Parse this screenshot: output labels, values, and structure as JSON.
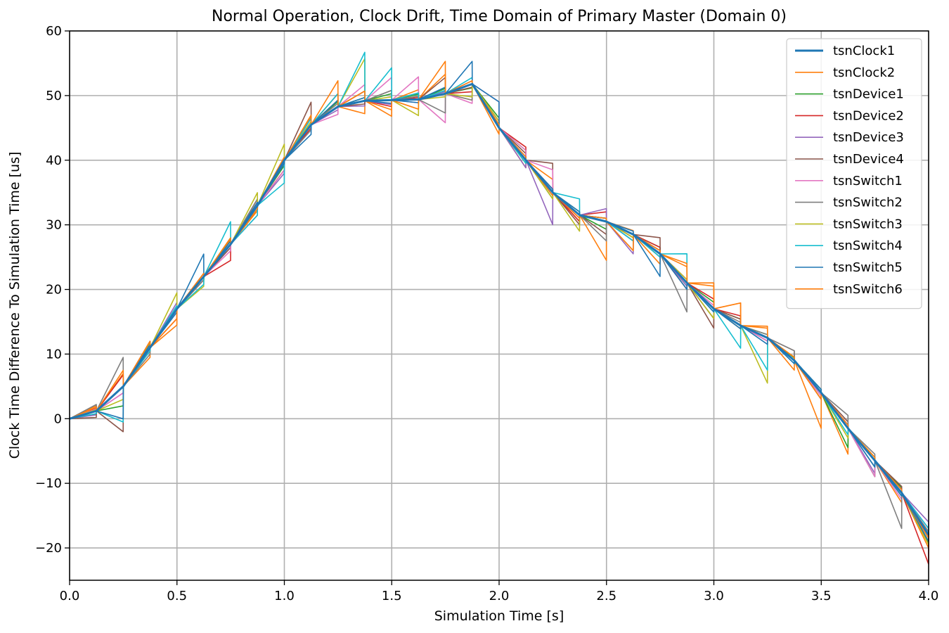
{
  "chart_data": {
    "type": "line",
    "title": "Normal Operation, Clock Drift, Time Domain of Primary Master (Domain 0)",
    "xlabel": "Simulation Time [s]",
    "ylabel": "Clock Time Difference To Simulation Time [us]",
    "xlim": [
      0.0,
      4.0
    ],
    "ylim": [
      -25,
      60
    ],
    "xticks": [
      0.0,
      0.5,
      1.0,
      1.5,
      2.0,
      2.5,
      3.0,
      3.5,
      4.0
    ],
    "xtick_labels": [
      "0.0",
      "0.5",
      "1.0",
      "1.5",
      "2.0",
      "2.5",
      "3.0",
      "3.5",
      "4.0"
    ],
    "yticks": [
      -20,
      -10,
      0,
      10,
      20,
      30,
      40,
      50,
      60
    ],
    "ytick_labels": [
      "−20",
      "−10",
      "0",
      "10",
      "20",
      "30",
      "40",
      "50",
      "60"
    ],
    "grid": true,
    "legend_position": "top-right",
    "sync_interval": 0.125,
    "base_curve": {
      "x": [
        0.0,
        0.125,
        0.25,
        0.375,
        0.5,
        0.625,
        0.75,
        0.875,
        1.0,
        1.125,
        1.25,
        1.375,
        1.5,
        1.625,
        1.75,
        1.875,
        2.0,
        2.125,
        2.25,
        2.375,
        2.5,
        2.625,
        2.75,
        2.875,
        3.0,
        3.125,
        3.25,
        3.375,
        3.5,
        3.625,
        3.75,
        3.875,
        4.0
      ],
      "y": [
        0.0,
        1.2,
        5.0,
        11.0,
        17.0,
        22.0,
        27.0,
        33.0,
        40.0,
        45.5,
        48.3,
        49.2,
        49.3,
        49.4,
        50.3,
        51.8,
        45.0,
        40.0,
        35.0,
        31.5,
        30.5,
        28.5,
        25.5,
        21.0,
        17.0,
        14.4,
        12.5,
        9.0,
        4.0,
        -1.5,
        -6.5,
        -11.5,
        -18.0
      ]
    },
    "series": [
      {
        "name": "tsnClock1",
        "color": "#1f77b4",
        "width": 3.0,
        "offsets": [
          0,
          0,
          0,
          0,
          0,
          0,
          0,
          0,
          0,
          0,
          0,
          0,
          0,
          0,
          0,
          0,
          0,
          0,
          0,
          0,
          0,
          0,
          0,
          0,
          0,
          0,
          0,
          0,
          0,
          0,
          0,
          0,
          0
        ]
      },
      {
        "name": "tsnClock2",
        "color": "#ff7f0e",
        "width": 1.6,
        "offsets": [
          0.8,
          2.0,
          -1.5,
          -2.5,
          0.5,
          0.8,
          -0.8,
          -1.5,
          1.2,
          2.0,
          -2.0,
          -2.5,
          1.5,
          3.0,
          -2.5,
          -1.0,
          -1.2,
          2.0,
          -1.0,
          -6.0,
          0.6,
          -1.6,
          2.5,
          4.0,
          3.5,
          1.8,
          -1.5,
          -5.5,
          -4.0,
          0.5,
          -1.5,
          -2.0,
          2.0
        ]
      },
      {
        "name": "tsnDevice1",
        "color": "#2ca02c",
        "width": 1.6,
        "offsets": [
          -0.5,
          -3.0,
          1.0,
          0.5,
          -0.5,
          1.0,
          1.0,
          -0.8,
          0.5,
          0.8,
          0.5,
          1.0,
          0.8,
          0.8,
          -0.6,
          1.5,
          1.5,
          -1.0,
          0.5,
          -1.2,
          -0.5,
          1.0,
          -0.5,
          1.0,
          1.0,
          0.5,
          0.4,
          -1.0,
          -3.0,
          -2.5,
          0.8,
          -1.2,
          -1.0
        ]
      },
      {
        "name": "tsnDevice2",
        "color": "#d62728",
        "width": 1.6,
        "offsets": [
          0.4,
          1.8,
          1.0,
          -1.5,
          -0.5,
          -2.5,
          1.0,
          -1.5,
          -0.5,
          1.0,
          1.5,
          -1.0,
          0.3,
          0.5,
          -1.2,
          1.0,
          2.0,
          0.5,
          -1.0,
          1.5,
          -0.5,
          1.0,
          -1.0,
          1.5,
          1.5,
          0.0,
          0.0,
          -1.0,
          0.5,
          -1.0,
          0.5,
          -4.5,
          -1.5
        ]
      },
      {
        "name": "tsnDevice3",
        "color": "#9467bd",
        "width": 1.6,
        "offsets": [
          -0.6,
          -1.0,
          0.5,
          1.0,
          0.0,
          -0.5,
          0.5,
          -2.0,
          0.0,
          -0.5,
          -0.8,
          -0.7,
          -0.5,
          0.3,
          0.5,
          0.5,
          -1.2,
          -5.0,
          0.0,
          2.0,
          -3.0,
          0.5,
          -0.5,
          -1.5,
          -0.5,
          -0.5,
          0.0,
          0.5,
          0.5,
          -2.0,
          0.5,
          2.0,
          0.5
        ]
      },
      {
        "name": "tsnDevice4",
        "color": "#8c564b",
        "width": 1.6,
        "offsets": [
          -1.0,
          -7.0,
          0.5,
          0.0,
          0.5,
          -0.5,
          0.5,
          -0.5,
          3.5,
          2.0,
          -0.5,
          1.5,
          1.0,
          2.5,
          -0.5,
          0.5,
          1.0,
          4.5,
          -1.5,
          -2.0,
          -1.0,
          2.5,
          0.5,
          -3.0,
          1.0,
          -0.5,
          1.5,
          -0.5,
          1.0,
          0.5,
          1.0,
          -1.0,
          -1.0
        ]
      },
      {
        "name": "tsnSwitch1",
        "color": "#e377c2",
        "width": 1.6,
        "offsets": [
          0.3,
          -1.0,
          -0.5,
          0.5,
          0.0,
          -1.0,
          -1.5,
          -1.5,
          1.0,
          -1.2,
          2.5,
          3.5,
          3.5,
          -4.5,
          -3.0,
          4.0,
          1.5,
          3.5,
          -0.5,
          0.5,
          -1.0,
          -0.5,
          0.5,
          0.5,
          -0.5,
          -0.5,
          0.5,
          -0.5,
          0.5,
          -2.5,
          -1.0,
          1.0,
          1.0
        ]
      },
      {
        "name": "tsnSwitch2",
        "color": "#7f7f7f",
        "width": 1.6,
        "offsets": [
          1.0,
          4.5,
          -1.0,
          0.0,
          -0.5,
          0.5,
          1.0,
          -0.5,
          -0.8,
          0.5,
          1.5,
          1.5,
          0.5,
          -3.0,
          -2.5,
          0.5,
          -0.5,
          -0.5,
          -0.5,
          -3.0,
          -2.5,
          0.5,
          -4.5,
          -1.5,
          0.5,
          0.5,
          1.5,
          0.5,
          2.0,
          1.0,
          -5.5,
          0.5,
          0.5
        ]
      },
      {
        "name": "tsnSwitch3",
        "color": "#bcbd22",
        "width": 1.6,
        "offsets": [
          0.2,
          -2.0,
          0.8,
          2.5,
          -1.5,
          0.5,
          2.0,
          2.5,
          0.5,
          1.0,
          6.5,
          0.5,
          -2.5,
          -0.5,
          -2.0,
          1.0,
          -0.5,
          -1.0,
          -2.5,
          0.5,
          -0.5,
          -0.5,
          0.5,
          -1.5,
          -0.5,
          -7.0,
          0.5,
          0.5,
          -1.5,
          0.5,
          -0.5,
          -1.5,
          -0.5
        ]
      },
      {
        "name": "tsnSwitch4",
        "color": "#17becf",
        "width": 1.6,
        "offsets": [
          -0.4,
          -5.5,
          -0.5,
          0.5,
          -1.2,
          3.5,
          -1.5,
          -3.5,
          1.0,
          2.0,
          7.5,
          5.0,
          1.0,
          0.5,
          1.0,
          0.5,
          -0.5,
          -0.5,
          2.5,
          0.5,
          -1.0,
          -0.5,
          4.5,
          -0.5,
          -3.5,
          -5.0,
          -0.5,
          0.5,
          -1.0,
          -1.0,
          -0.5,
          1.0,
          0.5
        ]
      },
      {
        "name": "tsnSwitch5",
        "color": "#1f77b4",
        "width": 1.6,
        "offsets": [
          0.0,
          -5.0,
          0.5,
          -0.5,
          3.5,
          0.5,
          0.5,
          -0.5,
          -1.5,
          1.0,
          0.5,
          -0.5,
          -0.5,
          1.0,
          3.5,
          4.0,
          0.5,
          0.5,
          0.5,
          0.5,
          0.5,
          -3.5,
          -1.0,
          -0.5,
          -0.5,
          -1.0,
          -0.5,
          0.5,
          0.5,
          -1.0,
          -0.5,
          -1.0,
          -0.5
        ]
      },
      {
        "name": "tsnSwitch6",
        "color": "#ff7f0e",
        "width": 1.6,
        "offsets": [
          0.6,
          2.5,
          1.0,
          -1.5,
          0.5,
          1.0,
          -0.5,
          0.5,
          1.5,
          4.0,
          1.5,
          -1.5,
          -1.5,
          5.0,
          0.5,
          0.5,
          0.5,
          -0.5,
          -0.5,
          0.5,
          -2.5,
          0.5,
          3.0,
          3.5,
          3.5,
          1.5,
          0.5,
          -1.0,
          0.5,
          0.5,
          0.5,
          -0.5,
          2.5
        ]
      }
    ]
  }
}
